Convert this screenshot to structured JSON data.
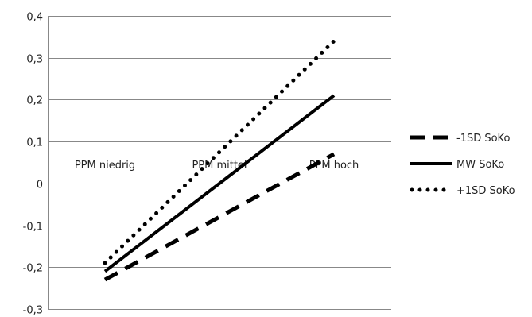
{
  "chart_data": {
    "type": "line",
    "categories": [
      "PPM niedrig",
      "PPM mittel",
      "PPM hoch"
    ],
    "series": [
      {
        "name": "-1SD SoKo",
        "style": "dashed",
        "values": [
          -0.23,
          -0.08,
          0.07
        ]
      },
      {
        "name": "MW SoKo",
        "style": "solid",
        "values": [
          -0.21,
          0.0,
          0.21
        ]
      },
      {
        "name": "+1SD SoKo",
        "style": "dotted",
        "values": [
          -0.19,
          0.075,
          0.34
        ]
      }
    ],
    "yticks": [
      "-0,3",
      "-0,2",
      "-0,1",
      "0",
      "0,1",
      "0,2",
      "0,3",
      "0,4"
    ],
    "ylim": [
      -0.3,
      0.4
    ],
    "grid": "horizontal",
    "legend": "right",
    "line_color": "#000000"
  }
}
